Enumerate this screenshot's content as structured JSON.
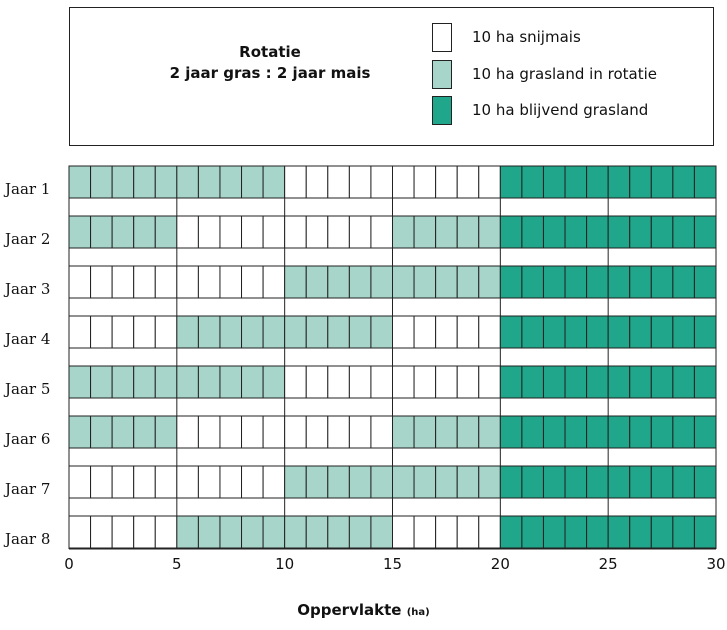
{
  "legend": {
    "title_line1": "Rotatie",
    "title_line2": "2 jaar gras : 2 jaar mais",
    "items": [
      {
        "label": "10 ha snijmais",
        "color": "#ffffff"
      },
      {
        "label": "10 ha grasland in rotatie",
        "color": "#a8d5c9"
      },
      {
        "label": "10 ha blijvend grasland",
        "color": "#1fa68b"
      }
    ]
  },
  "xaxis": {
    "title": "Oppervlakte",
    "unit": "(ha)"
  },
  "chart_data": {
    "type": "bar",
    "orientation": "horizontal-stacked-grid",
    "categories": [
      "Jaar 1",
      "Jaar 2",
      "Jaar 3",
      "Jaar 4",
      "Jaar 5",
      "Jaar 6",
      "Jaar 7",
      "Jaar 8"
    ],
    "xlim": [
      0,
      30
    ],
    "xticks": [
      0,
      5,
      10,
      15,
      20,
      25,
      30
    ],
    "cell_size_ha": 1,
    "xlabel": "Oppervlakte (ha)",
    "series": [
      {
        "name": "10 ha snijmais",
        "color": "#ffffff"
      },
      {
        "name": "10 ha grasland in rotatie",
        "color": "#a8d5c9"
      },
      {
        "name": "10 ha blijvend grasland",
        "color": "#1fa68b"
      }
    ],
    "rows": [
      {
        "label": "Jaar 1",
        "segments": [
          {
            "series": 1,
            "from": 0,
            "to": 10
          },
          {
            "series": 0,
            "from": 10,
            "to": 20
          },
          {
            "series": 2,
            "from": 20,
            "to": 30
          }
        ]
      },
      {
        "label": "Jaar 2",
        "segments": [
          {
            "series": 1,
            "from": 0,
            "to": 5
          },
          {
            "series": 0,
            "from": 5,
            "to": 15
          },
          {
            "series": 1,
            "from": 15,
            "to": 20
          },
          {
            "series": 2,
            "from": 20,
            "to": 30
          }
        ]
      },
      {
        "label": "Jaar 3",
        "segments": [
          {
            "series": 0,
            "from": 0,
            "to": 10
          },
          {
            "series": 1,
            "from": 10,
            "to": 20
          },
          {
            "series": 2,
            "from": 20,
            "to": 30
          }
        ]
      },
      {
        "label": "Jaar 4",
        "segments": [
          {
            "series": 0,
            "from": 0,
            "to": 5
          },
          {
            "series": 1,
            "from": 5,
            "to": 15
          },
          {
            "series": 0,
            "from": 15,
            "to": 20
          },
          {
            "series": 2,
            "from": 20,
            "to": 30
          }
        ]
      },
      {
        "label": "Jaar 5",
        "segments": [
          {
            "series": 1,
            "from": 0,
            "to": 10
          },
          {
            "series": 0,
            "from": 10,
            "to": 20
          },
          {
            "series": 2,
            "from": 20,
            "to": 30
          }
        ]
      },
      {
        "label": "Jaar 6",
        "segments": [
          {
            "series": 1,
            "from": 0,
            "to": 5
          },
          {
            "series": 0,
            "from": 5,
            "to": 15
          },
          {
            "series": 1,
            "from": 15,
            "to": 20
          },
          {
            "series": 2,
            "from": 20,
            "to": 30
          }
        ]
      },
      {
        "label": "Jaar 7",
        "segments": [
          {
            "series": 0,
            "from": 0,
            "to": 10
          },
          {
            "series": 1,
            "from": 10,
            "to": 20
          },
          {
            "series": 2,
            "from": 20,
            "to": 30
          }
        ]
      },
      {
        "label": "Jaar 8",
        "segments": [
          {
            "series": 0,
            "from": 0,
            "to": 5
          },
          {
            "series": 1,
            "from": 5,
            "to": 15
          },
          {
            "series": 0,
            "from": 15,
            "to": 20
          },
          {
            "series": 2,
            "from": 20,
            "to": 30
          }
        ]
      }
    ],
    "grid": true,
    "legend_position": "top"
  }
}
